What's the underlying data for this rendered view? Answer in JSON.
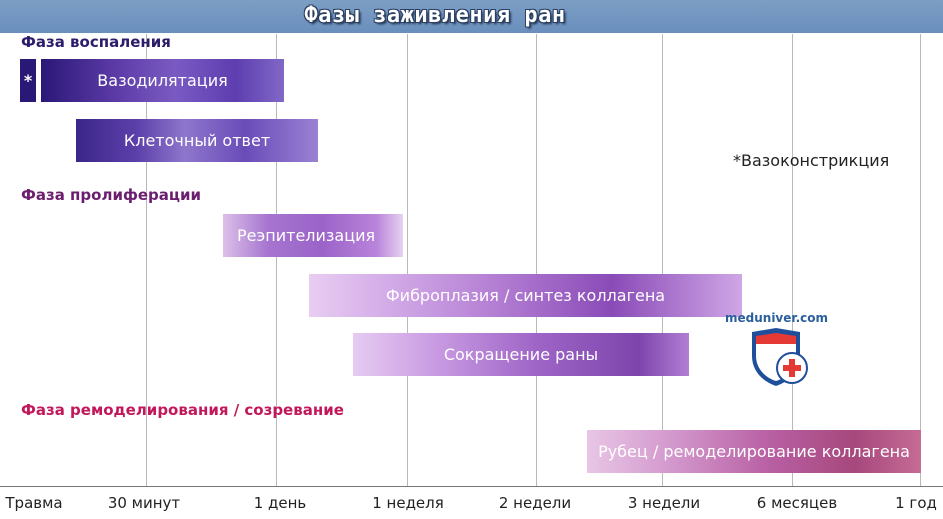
{
  "title": "Фазы заживления ран",
  "phases": {
    "inflammation": {
      "label": "Фаза воспаления",
      "color": "#2c1c6b"
    },
    "proliferation": {
      "label": "Фаза пролиферации",
      "color": "#6b1e6e"
    },
    "remodeling": {
      "label": "Фаза ремоделирования / созревание",
      "color": "#c2185b"
    }
  },
  "bars": {
    "vasodilation": "Вазодилятация",
    "cellular": "Клеточный ответ",
    "reepithelialization": "Реэпителизация",
    "fibroplasia": "Фиброплазия / синтез коллагена",
    "contraction": "Сокращение раны",
    "scar": "Рубец / ремоделирование коллагена"
  },
  "star_mark": "*",
  "note": "*Вазоконстрикция",
  "axis_ticks": [
    "Травма",
    "30 минут",
    "1 день",
    "1 неделя",
    "2 недели",
    "3 недели",
    "6 месяцев",
    "1 год"
  ],
  "logo": {
    "text": "meduniver.com",
    "icon": "shield-cross-icon"
  }
}
